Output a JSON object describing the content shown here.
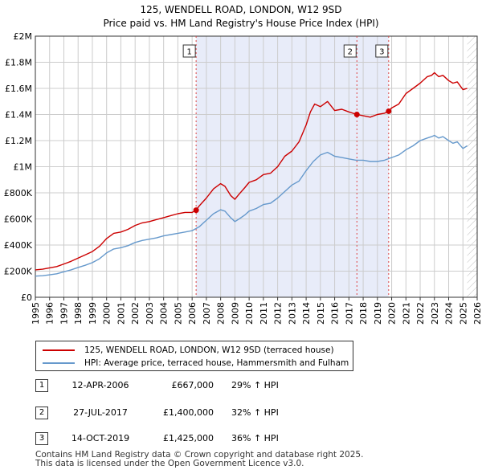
{
  "title": {
    "line1": "125, WENDELL ROAD, LONDON, W12 9SD",
    "line2": "Price paid vs. HM Land Registry's House Price Index (HPI)"
  },
  "colors": {
    "property": "#cc0000",
    "hpi": "#6699cc",
    "shade": "#e8ecf9",
    "grid": "#cccccc",
    "hatch": "#bbbbbb"
  },
  "chart_data": {
    "type": "line",
    "title": "Price paid vs. HM Land Registry's House Price Index (HPI)",
    "xlabel": "",
    "ylabel": "",
    "xlim": [
      1995,
      2026
    ],
    "ylim": [
      0,
      2000000
    ],
    "x_ticks": [
      "1995",
      "1996",
      "1997",
      "1998",
      "1999",
      "2000",
      "2001",
      "2002",
      "2003",
      "2004",
      "2005",
      "2006",
      "2007",
      "2008",
      "2009",
      "2010",
      "2011",
      "2012",
      "2013",
      "2014",
      "2015",
      "2016",
      "2017",
      "2018",
      "2019",
      "2020",
      "2021",
      "2022",
      "2023",
      "2024",
      "2025",
      "2026"
    ],
    "y_ticks": [
      {
        "value": 0,
        "label": "£0"
      },
      {
        "value": 200000,
        "label": "£200K"
      },
      {
        "value": 400000,
        "label": "£400K"
      },
      {
        "value": 600000,
        "label": "£600K"
      },
      {
        "value": 800000,
        "label": "£800K"
      },
      {
        "value": 1000000,
        "label": "£1M"
      },
      {
        "value": 1200000,
        "label": "£1.2M"
      },
      {
        "value": 1400000,
        "label": "£1.4M"
      },
      {
        "value": 1600000,
        "label": "£1.6M"
      },
      {
        "value": 1800000,
        "label": "£1.8M"
      },
      {
        "value": 2000000,
        "label": "£2M"
      }
    ],
    "shaded_region": [
      2006.28,
      2019.79
    ],
    "hatched_from": 2025.3,
    "series": [
      {
        "name": "125, WENDELL ROAD, LONDON, W12 9SD (terraced house)",
        "x": [
          1995,
          1995.5,
          1996,
          1996.5,
          1997,
          1997.5,
          1998,
          1998.5,
          1999,
          1999.5,
          2000,
          2000.5,
          2001,
          2001.5,
          2002,
          2002.5,
          2003,
          2003.5,
          2004,
          2004.5,
          2005,
          2005.5,
          2006,
          2006.28,
          2006.5,
          2007,
          2007.5,
          2008,
          2008.3,
          2008.7,
          2009,
          2009.3,
          2009.7,
          2010,
          2010.5,
          2011,
          2011.5,
          2012,
          2012.5,
          2013,
          2013.5,
          2014,
          2014.3,
          2014.6,
          2015,
          2015.5,
          2016,
          2016.5,
          2017,
          2017.56,
          2018,
          2018.5,
          2019,
          2019.5,
          2019.79,
          2020,
          2020.5,
          2021,
          2021.5,
          2022,
          2022.5,
          2022.8,
          2023,
          2023.3,
          2023.6,
          2024,
          2024.3,
          2024.6,
          2025,
          2025.3
        ],
        "values": [
          210000,
          215000,
          225000,
          235000,
          255000,
          275000,
          300000,
          325000,
          350000,
          390000,
          450000,
          490000,
          500000,
          520000,
          550000,
          570000,
          580000,
          595000,
          610000,
          625000,
          640000,
          650000,
          650000,
          667000,
          700000,
          760000,
          830000,
          870000,
          850000,
          780000,
          750000,
          790000,
          840000,
          880000,
          900000,
          940000,
          950000,
          1000000,
          1080000,
          1120000,
          1190000,
          1320000,
          1420000,
          1480000,
          1460000,
          1500000,
          1430000,
          1440000,
          1420000,
          1400000,
          1390000,
          1380000,
          1400000,
          1410000,
          1425000,
          1450000,
          1480000,
          1560000,
          1600000,
          1640000,
          1690000,
          1700000,
          1720000,
          1690000,
          1700000,
          1660000,
          1640000,
          1650000,
          1590000,
          1600000
        ]
      },
      {
        "name": "HPI: Average price, terraced house, Hammersmith and Fulham",
        "x": [
          1995,
          1995.5,
          1996,
          1996.5,
          1997,
          1997.5,
          1998,
          1998.5,
          1999,
          1999.5,
          2000,
          2000.5,
          2001,
          2001.5,
          2002,
          2002.5,
          2003,
          2003.5,
          2004,
          2004.5,
          2005,
          2005.5,
          2006,
          2006.5,
          2007,
          2007.5,
          2008,
          2008.3,
          2008.7,
          2009,
          2009.3,
          2009.7,
          2010,
          2010.5,
          2011,
          2011.5,
          2012,
          2012.5,
          2013,
          2013.5,
          2014,
          2014.5,
          2015,
          2015.5,
          2016,
          2016.5,
          2017,
          2017.5,
          2018,
          2018.5,
          2019,
          2019.5,
          2020,
          2020.5,
          2021,
          2021.5,
          2022,
          2022.5,
          2022.8,
          2023,
          2023.3,
          2023.6,
          2024,
          2024.3,
          2024.6,
          2025,
          2025.3
        ],
        "values": [
          162000,
          165000,
          172000,
          180000,
          195000,
          210000,
          228000,
          245000,
          265000,
          295000,
          340000,
          370000,
          380000,
          395000,
          420000,
          435000,
          445000,
          455000,
          470000,
          480000,
          490000,
          500000,
          510000,
          540000,
          590000,
          640000,
          670000,
          660000,
          610000,
          580000,
          600000,
          630000,
          660000,
          680000,
          710000,
          720000,
          760000,
          810000,
          860000,
          890000,
          970000,
          1040000,
          1090000,
          1110000,
          1080000,
          1070000,
          1060000,
          1050000,
          1050000,
          1040000,
          1040000,
          1050000,
          1070000,
          1090000,
          1130000,
          1160000,
          1200000,
          1220000,
          1230000,
          1240000,
          1220000,
          1230000,
          1200000,
          1180000,
          1190000,
          1140000,
          1160000
        ]
      }
    ],
    "markers": [
      {
        "label": "1",
        "x": 2006.28,
        "y": 667000
      },
      {
        "label": "2",
        "x": 2017.56,
        "y": 1400000
      },
      {
        "label": "3",
        "x": 2019.79,
        "y": 1425000
      }
    ]
  },
  "legend": [
    {
      "label": "125, WENDELL ROAD, LONDON, W12 9SD (terraced house)"
    },
    {
      "label": "HPI: Average price, terraced house, Hammersmith and Fulham"
    }
  ],
  "sales": [
    {
      "num": "1",
      "date": "12-APR-2006",
      "price": "£667,000",
      "hpi": "29% ↑ HPI"
    },
    {
      "num": "2",
      "date": "27-JUL-2017",
      "price": "£1,400,000",
      "hpi": "32% ↑ HPI"
    },
    {
      "num": "3",
      "date": "14-OCT-2019",
      "price": "£1,425,000",
      "hpi": "36% ↑ HPI"
    }
  ],
  "footer": {
    "line1": "Contains HM Land Registry data © Crown copyright and database right 2025.",
    "line2": "This data is licensed under the Open Government Licence v3.0."
  }
}
